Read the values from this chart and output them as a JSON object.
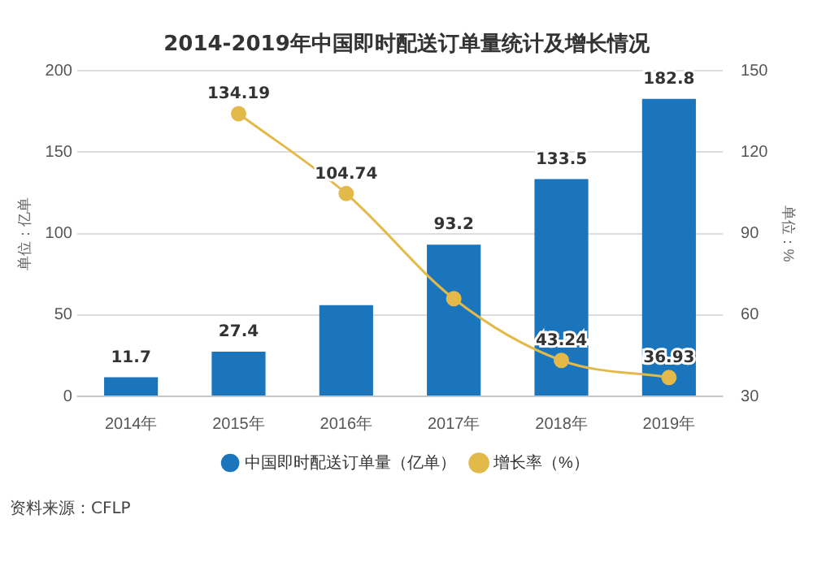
{
  "chart_data": {
    "type": "bar",
    "title": "2014-2019年中国即时配送订单量统计及增长情况",
    "categories": [
      "2014年",
      "2015年",
      "2016年",
      "2017年",
      "2018年",
      "2019年"
    ],
    "series": [
      {
        "name": "中国即时配送订单量（亿单）",
        "color": "#1a75bc",
        "values": [
          11.7,
          27.4,
          56,
          93.2,
          133.5,
          182.8
        ],
        "value_labels": [
          "11.7",
          "27.4",
          null,
          "93.2",
          "133.5",
          "182.8"
        ]
      },
      {
        "name": "增长率（%）",
        "type": "line",
        "axis": "y2",
        "color": "#e3b94a",
        "values": [
          null,
          134.19,
          104.74,
          66,
          43.24,
          36.93
        ],
        "value_labels": [
          null,
          "134.19",
          "104.74",
          null,
          "43.24",
          "36.93"
        ]
      }
    ],
    "ylabel": "单位：亿单",
    "y2label": "单位：%",
    "ylim": [
      0,
      200
    ],
    "yticks": [
      0,
      50,
      100,
      150,
      200
    ],
    "y2lim": [
      30,
      150
    ],
    "y2ticks": [
      30,
      60,
      90,
      120,
      150
    ],
    "grid": "y",
    "legend": "bottom",
    "marker": "circle",
    "annotations": [
      "资料来源：CFLP"
    ]
  }
}
